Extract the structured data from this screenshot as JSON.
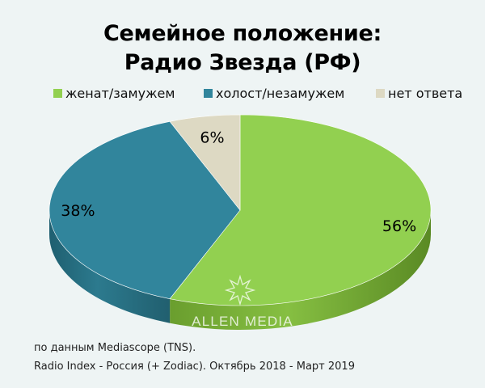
{
  "chart_data": {
    "type": "pie",
    "title_lines": [
      "Семейное положение:",
      "Радио Звезда (РФ)"
    ],
    "slices": [
      {
        "label": "женат/замужем",
        "value": 56,
        "display": "56%",
        "color": "#92d050"
      },
      {
        "label": "холост/незамужем",
        "value": 38,
        "display": "38%",
        "color": "#31859c"
      },
      {
        "label": "нет ответа",
        "value": 6,
        "display": "6%",
        "color": "#ddd9c3"
      }
    ],
    "legend_position": "top",
    "style": "3d"
  },
  "watermark": "ALLEN MEDIA",
  "footnotes": [
    "по данным Mediascope (TNS).",
    "Radio Index - Россия (+ Zodiac). Октябрь 2018 - Март 2019"
  ]
}
